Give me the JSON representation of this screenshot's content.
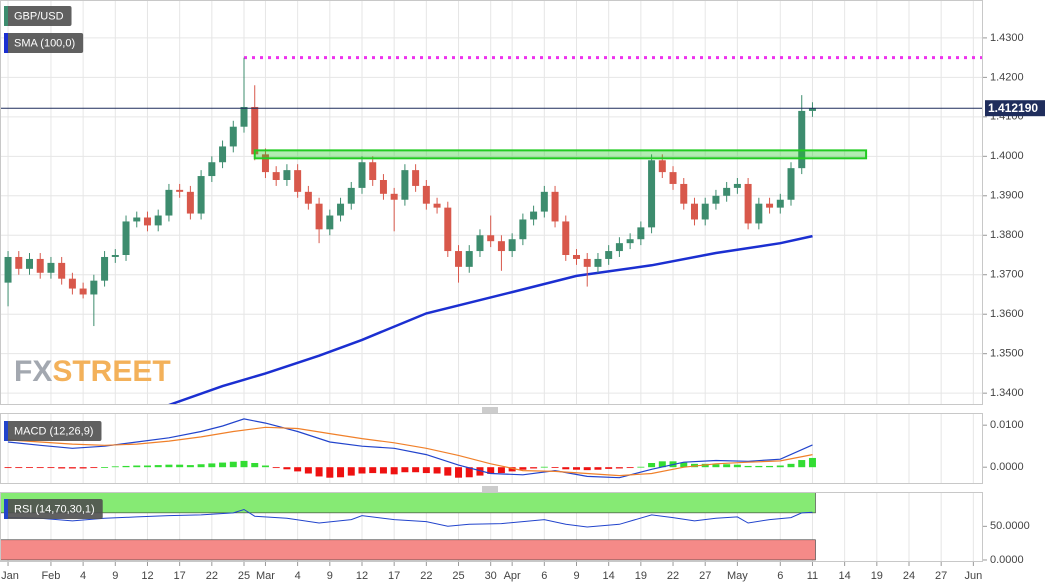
{
  "chart_data": [
    {
      "type": "candlestick",
      "title": "GBP/USD",
      "title_color": "#3d8c6e",
      "x": [
        0,
        1,
        2,
        3,
        4,
        5,
        6,
        7,
        8,
        9,
        10,
        11,
        12,
        13,
        14,
        15,
        16,
        17,
        18,
        19,
        20,
        21,
        22,
        23,
        24,
        25,
        26,
        27,
        28,
        29,
        30,
        31,
        32,
        33,
        34,
        35,
        36,
        37,
        38,
        39,
        40,
        41,
        42,
        43,
        44,
        45,
        46,
        47,
        48,
        49,
        50,
        51,
        52,
        53,
        54,
        55,
        56,
        57,
        58,
        59,
        60,
        61,
        62,
        63,
        64,
        65,
        66,
        67,
        68,
        69,
        70,
        71,
        72,
        73,
        74,
        75
      ],
      "open": [
        1.368,
        1.3745,
        1.3715,
        1.374,
        1.3705,
        1.373,
        1.369,
        1.3665,
        1.365,
        1.3685,
        1.3745,
        1.375,
        1.3835,
        1.3845,
        1.3825,
        1.385,
        1.3915,
        1.391,
        1.3855,
        1.395,
        1.3985,
        1.4025,
        1.4075,
        1.4125,
        1.4005,
        1.396,
        1.394,
        1.3965,
        1.391,
        1.388,
        1.3815,
        1.385,
        1.388,
        1.392,
        1.3985,
        1.394,
        1.3905,
        1.389,
        1.3965,
        1.3925,
        1.388,
        1.387,
        1.376,
        1.372,
        1.376,
        1.38,
        1.3785,
        1.376,
        1.379,
        1.384,
        1.386,
        1.391,
        1.3835,
        1.375,
        1.374,
        1.372,
        1.374,
        1.376,
        1.378,
        1.379,
        1.382,
        1.399,
        1.396,
        1.393,
        1.388,
        1.384,
        1.388,
        1.39,
        1.392,
        1.393,
        1.383,
        1.388,
        1.387,
        1.389,
        1.397,
        1.4115
      ],
      "high": [
        1.376,
        1.376,
        1.3755,
        1.3755,
        1.3745,
        1.3745,
        1.3705,
        1.368,
        1.37,
        1.376,
        1.3765,
        1.385,
        1.386,
        1.386,
        1.3865,
        1.393,
        1.393,
        1.3925,
        1.3965,
        1.4,
        1.404,
        1.409,
        1.425,
        1.418,
        1.402,
        1.3975,
        1.398,
        1.398,
        1.3925,
        1.3895,
        1.3865,
        1.3895,
        1.3935,
        1.4,
        1.4,
        1.3955,
        1.392,
        1.398,
        1.398,
        1.394,
        1.3895,
        1.3885,
        1.3775,
        1.3775,
        1.3815,
        1.385,
        1.38,
        1.3805,
        1.3855,
        1.3875,
        1.3925,
        1.3925,
        1.385,
        1.3765,
        1.3755,
        1.3755,
        1.3775,
        1.3795,
        1.3805,
        1.3835,
        1.4005,
        1.4005,
        1.3975,
        1.3945,
        1.3895,
        1.3895,
        1.3915,
        1.3935,
        1.3945,
        1.3945,
        1.3895,
        1.3895,
        1.3905,
        1.3985,
        1.4155,
        1.4137
      ],
      "low": [
        1.362,
        1.37,
        1.37,
        1.369,
        1.369,
        1.3675,
        1.365,
        1.364,
        1.357,
        1.367,
        1.373,
        1.3735,
        1.382,
        1.381,
        1.381,
        1.3835,
        1.3895,
        1.384,
        1.384,
        1.3935,
        1.397,
        1.401,
        1.406,
        1.399,
        1.3945,
        1.3925,
        1.3925,
        1.3895,
        1.3865,
        1.378,
        1.38,
        1.3835,
        1.3865,
        1.3905,
        1.3925,
        1.389,
        1.381,
        1.3875,
        1.391,
        1.3865,
        1.3855,
        1.3745,
        1.368,
        1.3705,
        1.3745,
        1.377,
        1.371,
        1.3745,
        1.3775,
        1.3825,
        1.3845,
        1.382,
        1.3735,
        1.3725,
        1.367,
        1.3705,
        1.3725,
        1.3745,
        1.3765,
        1.3775,
        1.3805,
        1.3945,
        1.3915,
        1.3865,
        1.3825,
        1.3825,
        1.3865,
        1.3885,
        1.3905,
        1.3815,
        1.3815,
        1.3855,
        1.3855,
        1.3875,
        1.3955,
        1.41
      ],
      "close": [
        1.3745,
        1.3715,
        1.374,
        1.3705,
        1.373,
        1.369,
        1.3665,
        1.365,
        1.3685,
        1.3745,
        1.375,
        1.3835,
        1.3845,
        1.3825,
        1.385,
        1.3915,
        1.391,
        1.3855,
        1.395,
        1.3985,
        1.4025,
        1.4075,
        1.4125,
        1.4005,
        1.396,
        1.394,
        1.3965,
        1.391,
        1.388,
        1.3815,
        1.385,
        1.388,
        1.392,
        1.3985,
        1.394,
        1.3905,
        1.389,
        1.3965,
        1.3925,
        1.388,
        1.387,
        1.376,
        1.372,
        1.376,
        1.38,
        1.3785,
        1.376,
        1.379,
        1.384,
        1.386,
        1.391,
        1.3835,
        1.375,
        1.374,
        1.372,
        1.374,
        1.376,
        1.378,
        1.379,
        1.382,
        1.399,
        1.396,
        1.393,
        1.388,
        1.384,
        1.388,
        1.39,
        1.392,
        1.393,
        1.383,
        1.388,
        1.387,
        1.389,
        1.397,
        1.4115,
        1.4122
      ],
      "up_color": "#3d8c6e",
      "down_color": "#d8584b",
      "xlim": [
        -0.75,
        90.9
      ],
      "ylim": [
        1.337,
        1.4396
      ],
      "yticks": [
        {
          "value": 1.43,
          "label": "1.4300"
        },
        {
          "value": 1.42,
          "label": "1.4200"
        },
        {
          "value": 1.41,
          "label": "1.4100"
        },
        {
          "value": 1.4,
          "label": "1.4000"
        },
        {
          "value": 1.39,
          "label": "1.3900"
        },
        {
          "value": 1.38,
          "label": "1.3800"
        },
        {
          "value": 1.37,
          "label": "1.3700"
        },
        {
          "value": 1.36,
          "label": "1.3600"
        },
        {
          "value": 1.35,
          "label": "1.3500"
        },
        {
          "value": 1.34,
          "label": "1.3400"
        }
      ],
      "grid": true,
      "overlays": [
        {
          "name": "SMA (100,0)",
          "color": "#1b2fd1",
          "x": [
            15,
            20,
            24,
            29,
            33,
            39,
            47,
            53,
            60,
            66,
            72,
            75
          ],
          "values": [
            1.337,
            1.3418,
            1.345,
            1.3495,
            1.3535,
            1.3602,
            1.3656,
            1.3697,
            1.3724,
            1.3755,
            1.378,
            1.3798
          ]
        }
      ],
      "levels": [
        {
          "value": 1.425,
          "from": 22,
          "color": "#ee33ee"
        }
      ],
      "zone": {
        "low": 1.4,
        "high": 1.401,
        "from": 23,
        "to": 80,
        "color": "#22cc22"
      },
      "last_price": {
        "value": 1.41219,
        "label": "1.412190",
        "color": "#1f2d5c"
      },
      "watermark": {
        "parts": [
          "FX",
          "STREET"
        ],
        "colors": [
          "#a3a8b0",
          "#f3b15a"
        ]
      }
    },
    {
      "type": "macd",
      "title": "MACD (12,26,9)",
      "title_color": "#2244cc",
      "x": [
        0,
        1,
        2,
        3,
        4,
        5,
        6,
        7,
        8,
        9,
        10,
        11,
        12,
        13,
        14,
        15,
        16,
        17,
        18,
        19,
        20,
        21,
        22,
        23,
        24,
        25,
        26,
        27,
        28,
        29,
        30,
        31,
        32,
        33,
        34,
        35,
        36,
        37,
        38,
        39,
        40,
        41,
        42,
        43,
        44,
        45,
        46,
        47,
        48,
        49,
        50,
        51,
        52,
        53,
        54,
        55,
        56,
        57,
        58,
        59,
        60,
        61,
        62,
        63,
        64,
        65,
        66,
        67,
        68,
        69,
        70,
        71,
        72,
        73,
        74,
        75
      ],
      "values": [
        -0.0002,
        -0.0002,
        -0.0001,
        -0.0002,
        -0.0002,
        -0.0003,
        -0.0003,
        -0.0003,
        -0.0002,
        0.0,
        0.0002,
        0.0003,
        0.0004,
        0.0004,
        0.0005,
        0.0006,
        0.0006,
        0.0005,
        0.0007,
        0.0009,
        0.0011,
        0.0013,
        0.0015,
        0.001,
        0.0004,
        -0.0002,
        -0.0005,
        -0.001,
        -0.0015,
        -0.0022,
        -0.0025,
        -0.0024,
        -0.002,
        -0.0015,
        -0.0014,
        -0.0015,
        -0.0017,
        -0.0012,
        -0.0012,
        -0.0014,
        -0.0015,
        -0.002,
        -0.0025,
        -0.0024,
        -0.002,
        -0.0016,
        -0.0014,
        -0.001,
        -0.0006,
        -0.0003,
        0.0001,
        -0.0001,
        -0.0005,
        -0.0006,
        -0.0007,
        -0.0006,
        -0.0004,
        -0.0003,
        -0.0002,
        0.0001,
        0.001,
        0.0014,
        0.0014,
        0.0011,
        0.0008,
        0.0008,
        0.0007,
        0.0007,
        0.0006,
        0.0003,
        0.0003,
        0.0003,
        0.0004,
        0.0008,
        0.0017,
        0.0022
      ],
      "up_color": "#33dd33",
      "down_color": "#ee1111",
      "series": [
        {
          "color": "#2244cc",
          "x": [
            0,
            3,
            6,
            9,
            12,
            15,
            18,
            20,
            22,
            24,
            27,
            30,
            33,
            36,
            39,
            42,
            45,
            48,
            51,
            54,
            57,
            60,
            63,
            66,
            69,
            72,
            75
          ],
          "values": [
            0.006,
            0.0052,
            0.0045,
            0.005,
            0.006,
            0.007,
            0.0085,
            0.0098,
            0.0115,
            0.0105,
            0.0085,
            0.006,
            0.005,
            0.0045,
            0.003,
            0.0005,
            -0.0015,
            -0.0018,
            -0.0008,
            -0.0022,
            -0.0025,
            -0.0005,
            0.0012,
            0.0016,
            0.0014,
            0.0019,
            0.0053
          ]
        },
        {
          "color": "#f0802a",
          "x": [
            0,
            3,
            6,
            9,
            12,
            15,
            18,
            21,
            24,
            27,
            30,
            33,
            36,
            39,
            42,
            45,
            48,
            51,
            54,
            57,
            60,
            63,
            66,
            69,
            72,
            75
          ],
          "values": [
            0.0065,
            0.006,
            0.0055,
            0.0052,
            0.0055,
            0.0062,
            0.0072,
            0.0085,
            0.0095,
            0.0092,
            0.008,
            0.0068,
            0.0058,
            0.0045,
            0.0028,
            0.0008,
            -0.0008,
            -0.001,
            -0.0015,
            -0.002,
            -0.0015,
            0.0,
            0.0008,
            0.0012,
            0.0015,
            0.003
          ]
        }
      ],
      "xlim": [
        -0.75,
        90.9
      ],
      "ylim": [
        -0.004,
        0.0129
      ],
      "yticks": [
        {
          "value": 0.01,
          "label": "0.0100"
        },
        {
          "value": 0,
          "label": "0.0000"
        }
      ]
    },
    {
      "type": "rsi",
      "title": "RSI (14,70,30,1)",
      "title_color": "#2244cc",
      "color": "#2244cc",
      "x": [
        0,
        3,
        6,
        9,
        12,
        15,
        18,
        21,
        22,
        23,
        26,
        29,
        32,
        33,
        36,
        39,
        41,
        43,
        46,
        48,
        50,
        52,
        54,
        57,
        60,
        62,
        64,
        66,
        68,
        69,
        71,
        73,
        74,
        75
      ],
      "values": [
        63,
        62,
        58,
        62,
        64,
        66,
        67,
        70,
        75,
        65,
        62,
        55,
        60,
        66,
        60,
        57,
        50,
        53,
        54,
        57,
        60,
        53,
        49,
        53,
        67,
        63,
        58,
        62,
        64,
        55,
        60,
        63,
        70,
        71
      ],
      "zones": [
        {
          "from": 70,
          "to": 100,
          "color": "#86ea74"
        },
        {
          "from": 0,
          "to": 30,
          "color": "#f58a88"
        }
      ],
      "xlim": [
        -0.75,
        90.9
      ],
      "ylim": [
        -3,
        101
      ],
      "yticks": [
        {
          "value": 50,
          "label": "50.0000"
        },
        {
          "value": 0,
          "label": "0.0000"
        }
      ],
      "xticks": [
        {
          "value": 0,
          "label": "Jan"
        },
        {
          "value": 4,
          "label": "Feb"
        },
        {
          "value": 7,
          "label": "4"
        },
        {
          "value": 10,
          "label": "9"
        },
        {
          "value": 13,
          "label": "12"
        },
        {
          "value": 16,
          "label": "17"
        },
        {
          "value": 19,
          "label": "22"
        },
        {
          "value": 22,
          "label": "25"
        },
        {
          "value": 24,
          "label": "Mar"
        },
        {
          "value": 27,
          "label": "4"
        },
        {
          "value": 30,
          "label": "9"
        },
        {
          "value": 33,
          "label": "12"
        },
        {
          "value": 36,
          "label": "17"
        },
        {
          "value": 39,
          "label": "22"
        },
        {
          "value": 42,
          "label": "25"
        },
        {
          "value": 45,
          "label": "30"
        },
        {
          "value": 47,
          "label": "Apr"
        },
        {
          "value": 50,
          "label": "6"
        },
        {
          "value": 53,
          "label": "9"
        },
        {
          "value": 56,
          "label": "14"
        },
        {
          "value": 59,
          "label": "19"
        },
        {
          "value": 62,
          "label": "22"
        },
        {
          "value": 65,
          "label": "27"
        },
        {
          "value": 68,
          "label": "May"
        },
        {
          "value": 72,
          "label": "6"
        },
        {
          "value": 75,
          "label": "11"
        },
        {
          "value": 78,
          "label": "14"
        },
        {
          "value": 81,
          "label": "19"
        },
        {
          "value": 84,
          "label": "24"
        },
        {
          "value": 87,
          "label": "27"
        },
        {
          "value": 90,
          "label": "Jun"
        }
      ]
    }
  ]
}
